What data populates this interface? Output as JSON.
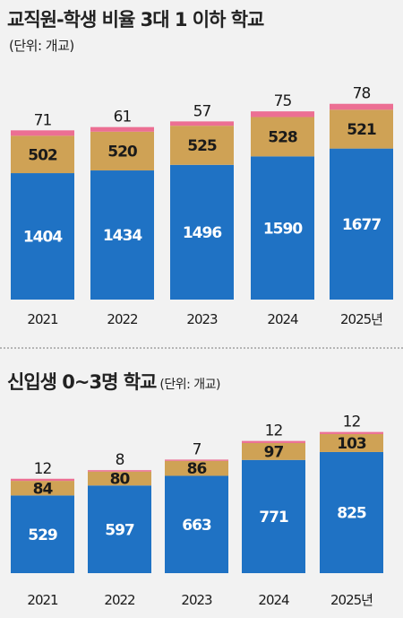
{
  "colors": {
    "blue": "#1f72c4",
    "gold": "#cfa255",
    "pink": "#ec6f93"
  },
  "chart_data": [
    {
      "type": "bar",
      "stacked": true,
      "title": "교직원-학생 비율 3대 1 이하 학교",
      "unit": "(단위: 개교)",
      "categories": [
        "2021",
        "2022",
        "2023",
        "2024",
        "2025년"
      ],
      "series": [
        {
          "values": [
            1404,
            1434,
            1496,
            1590,
            1677
          ]
        },
        {
          "values": [
            502,
            520,
            525,
            528,
            521
          ]
        },
        {
          "values": [
            71,
            61,
            57,
            75,
            78
          ]
        }
      ]
    },
    {
      "type": "bar",
      "stacked": true,
      "title": "신입생 0~3명 학교",
      "unit": "(단위: 개교)",
      "categories": [
        "2021",
        "2022",
        "2023",
        "2024",
        "2025년"
      ],
      "series": [
        {
          "values": [
            529,
            597,
            663,
            771,
            825
          ]
        },
        {
          "values": [
            84,
            80,
            86,
            97,
            103
          ]
        },
        {
          "values": [
            12,
            8,
            7,
            12,
            12
          ]
        }
      ]
    }
  ]
}
